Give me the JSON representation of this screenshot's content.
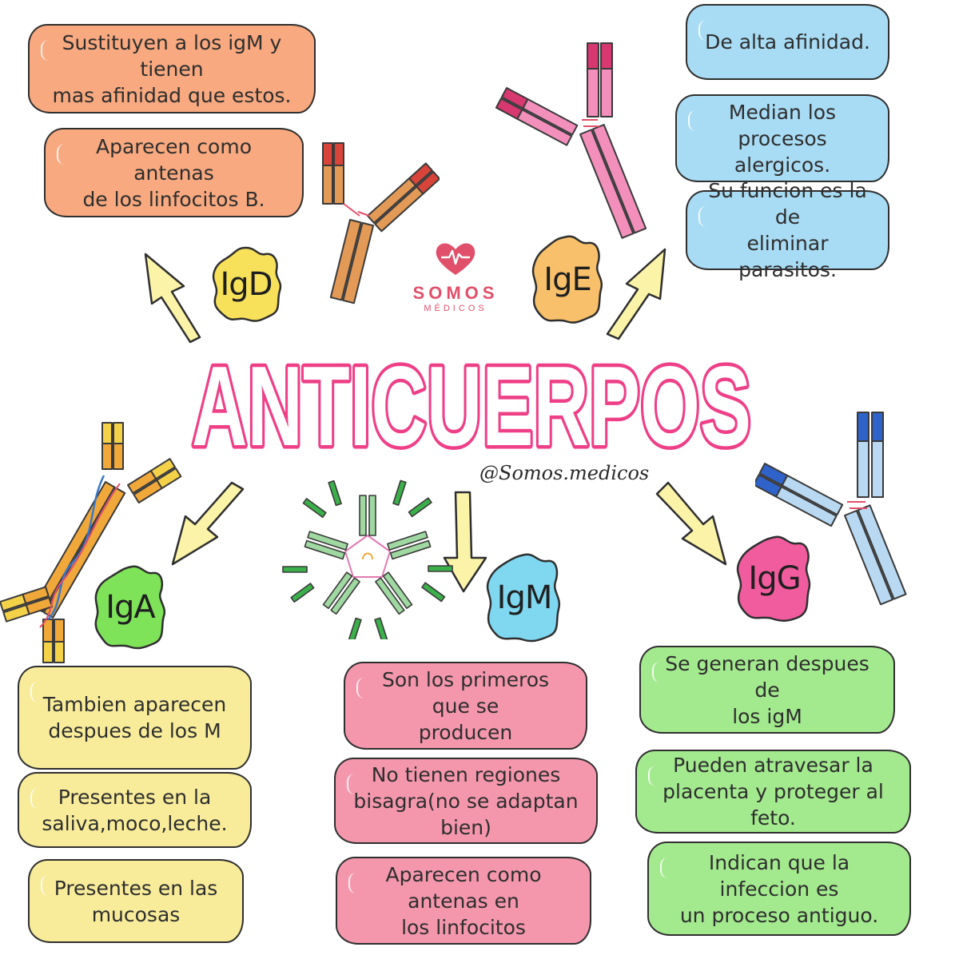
{
  "title": "ANTICUERPOS",
  "handle": "@Somos.medicos",
  "logo": {
    "brand": "SOMOS",
    "sub": "MÉDICOS"
  },
  "antibodies": [
    {
      "name": "IgD",
      "color": "#f7e15a"
    },
    {
      "name": "IgE",
      "color": "#f8c06a"
    },
    {
      "name": "IgA",
      "color": "#7fe35a"
    },
    {
      "name": "IgM",
      "color": "#7fd7f0"
    },
    {
      "name": "IgG",
      "color": "#f15c9e"
    }
  ],
  "notes": {
    "igd": [
      "Sustituyen a los igM y tienen\nmas afinidad que estos.",
      "Aparecen como antenas\nde los linfocitos B."
    ],
    "ige": [
      "De alta afinidad.",
      "Median los procesos\nalergicos.",
      "Su funcion es la de\neliminar parasitos."
    ],
    "iga": [
      "Tambien aparecen\ndespues de los M",
      "Presentes en la\nsaliva,moco,leche.",
      "Presentes en las\nmucosas"
    ],
    "igm": [
      "Son los primeros que se\nproducen",
      "No tienen regiones\nbisagra(no se adaptan bien)",
      "Aparecen como antenas en\nlos linfocitos"
    ],
    "igg": [
      "Se generan despues de\nlos igM",
      "Pueden atravesar la\nplacenta y proteger al feto.",
      "Indican que la infeccion es\nun proceso antiguo."
    ]
  },
  "colors": {
    "title_fill": "#ffffff",
    "title_stroke": "#ee3f87",
    "arrow": "#fbf3a8",
    "igd_heavy": "#e39a56",
    "igd_tip": "#d8443a",
    "ige_heavy": "#f38fbb",
    "ige_tip": "#d6386f",
    "iga_heavy": "#f0a83a",
    "iga_tip": "#f3d24a",
    "igm_heavy": "#9fd8a0",
    "igm_tip": "#3bb04a",
    "igg_heavy": "#b9d9f2",
    "igg_tip": "#2f63c9"
  }
}
